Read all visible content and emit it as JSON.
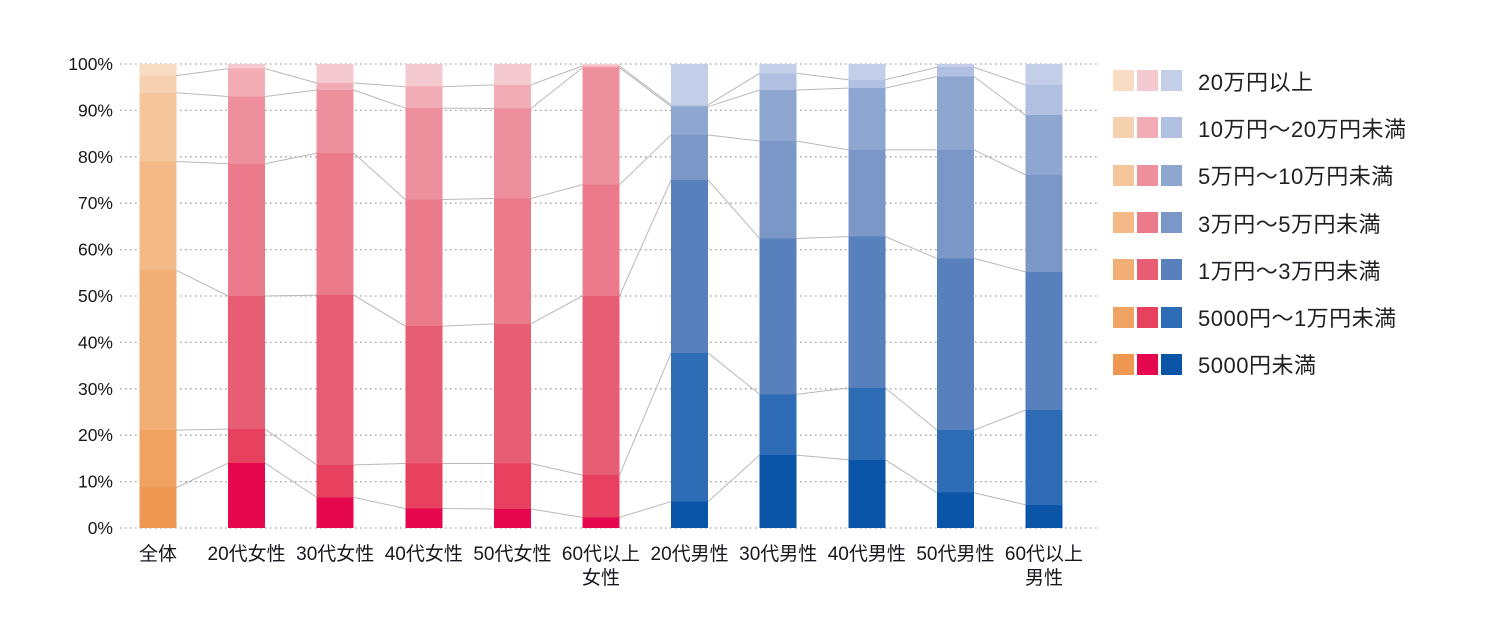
{
  "chart_data": {
    "type": "bar",
    "subtype": "100-percent-stacked-column",
    "title": "",
    "unit": "%",
    "ylim": [
      0,
      100
    ],
    "grid": "dotted horizontal lines every 10%",
    "legend_position": "right",
    "y_ticks": [
      "100%",
      "90%",
      "80%",
      "70%",
      "60%",
      "50%",
      "40%",
      "30%",
      "20%",
      "10%",
      "0%"
    ],
    "categories": [
      "全体",
      "20代女性",
      "30代女性",
      "40代女性",
      "50代女性",
      "60代以上女性",
      "20代男性",
      "30代男性",
      "40代男性",
      "50代男性",
      "60代以上男性"
    ],
    "x_labels": [
      [
        "全体"
      ],
      [
        "20代女性"
      ],
      [
        "30代女性"
      ],
      [
        "40代女性"
      ],
      [
        "50代女性"
      ],
      [
        "60代以上",
        "女性"
      ],
      [
        "20代男性"
      ],
      [
        "30代男性"
      ],
      [
        "40代男性"
      ],
      [
        "50代男性"
      ],
      [
        "60代以上",
        "男性"
      ]
    ],
    "stack_note": "series listed top-of-stack first; values are percentages per category column",
    "series": [
      {
        "name": "20万円以上",
        "values": [
          2.5,
          1.0,
          4.1,
          4.9,
          4.5,
          0.4,
          8.8,
          2.0,
          3.4,
          0.7,
          4.5
        ]
      },
      {
        "name": "10万円～20万円未満",
        "values": [
          3.7,
          6.0,
          1.5,
          4.6,
          5.1,
          0.4,
          0.4,
          3.6,
          1.8,
          2.0,
          6.5
        ]
      },
      {
        "name": "5万円～10万円未満",
        "values": [
          14.8,
          14.5,
          13.6,
          19.7,
          19.4,
          25.2,
          6.1,
          11.0,
          13.3,
          15.8,
          12.9
        ]
      },
      {
        "name": "3万円～5万円未満",
        "values": [
          23.5,
          28.5,
          30.6,
          27.3,
          27.0,
          24.0,
          9.7,
          21.0,
          18.7,
          23.4,
          20.9
        ]
      },
      {
        "name": "1万円～3万円未満",
        "values": [
          34.4,
          28.7,
          36.6,
          29.6,
          30.1,
          38.6,
          37.3,
          33.6,
          32.6,
          37.0,
          29.8
        ]
      },
      {
        "name": "5000円～1万円未満",
        "values": [
          12.4,
          7.3,
          7.0,
          9.7,
          9.8,
          9.1,
          32.0,
          13.1,
          15.5,
          13.5,
          20.4
        ]
      },
      {
        "name": "5000円未満",
        "values": [
          8.7,
          14.0,
          6.6,
          4.2,
          4.1,
          2.3,
          5.7,
          15.7,
          14.7,
          7.6,
          5.0
        ]
      }
    ],
    "category_palette": [
      "orange",
      "pink",
      "pink",
      "pink",
      "pink",
      "pink",
      "blue",
      "blue",
      "blue",
      "blue",
      "blue"
    ],
    "palettes": {
      "orange": [
        "#f8dcc3",
        "#f6d1af",
        "#f5c69c",
        "#f3ba88",
        "#f1ae75",
        "#f0a263",
        "#ee9750"
      ],
      "pink": [
        "#f5c9d0",
        "#f1acb6",
        "#ee8f9d",
        "#eb7b8b",
        "#e75d73",
        "#e7415f",
        "#e5084f"
      ],
      "blue": [
        "#c3cee8",
        "#b1c0e0",
        "#8ea7d0",
        "#7b97c8",
        "#5880bd",
        "#2e6db5",
        "#0a55a7"
      ]
    },
    "gridline_color": "#a3a3a3",
    "connector_line_color": "#b9b9b9",
    "axis_text_color": "#17171f"
  }
}
